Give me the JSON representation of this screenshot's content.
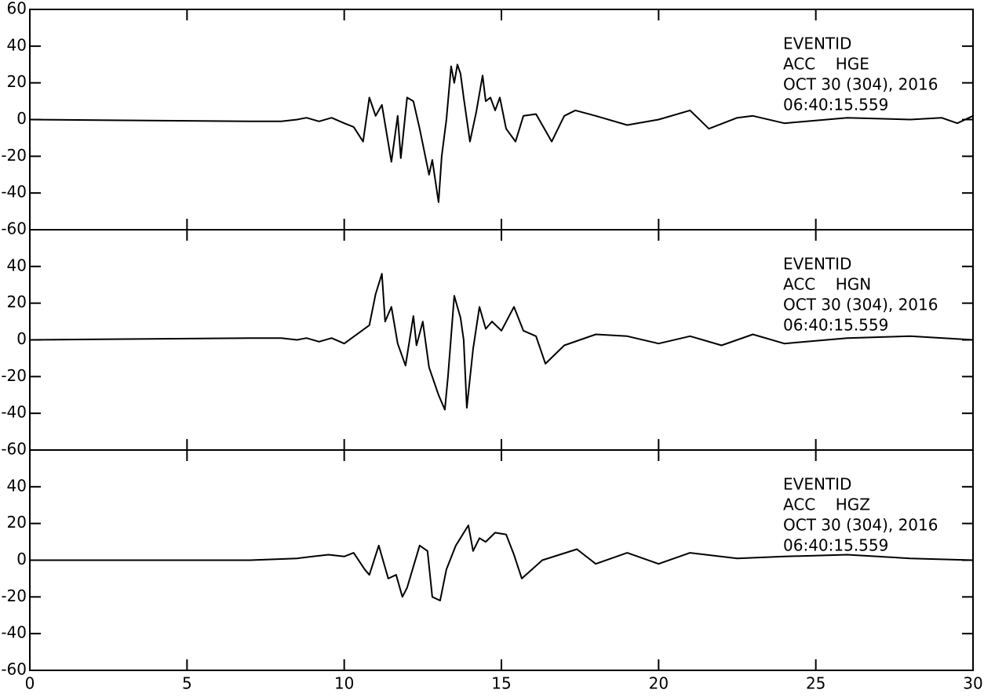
{
  "chart_data": [
    {
      "type": "line",
      "color": "#000000",
      "ylim": [
        -60,
        60
      ],
      "yticks": [
        -60,
        -40,
        -20,
        0,
        20,
        40,
        60
      ],
      "xlim": [
        0,
        30
      ],
      "annotations": [
        "EVENTID",
        "ACC    HGE",
        "OCT 30 (304), 2016",
        "06:40:15.559"
      ],
      "x": [
        0,
        7,
        8,
        8.5,
        8.8,
        9.2,
        9.6,
        10,
        10.3,
        10.6,
        10.8,
        11,
        11.2,
        11.5,
        11.7,
        11.8,
        12.0,
        12.2,
        12.4,
        12.7,
        12.8,
        13.0,
        13.1,
        13.25,
        13.4,
        13.5,
        13.6,
        13.7,
        13.8,
        14.0,
        14.2,
        14.4,
        14.5,
        14.65,
        14.8,
        14.95,
        15.15,
        15.45,
        15.7,
        16.1,
        16.6,
        17.0,
        17.35,
        18.0,
        19.0,
        20.0,
        21.0,
        21.6,
        22.5,
        23.0,
        24.0,
        26.0,
        28.0,
        29.0,
        29.5,
        30
      ],
      "values": [
        0,
        -1,
        -1,
        0,
        1,
        -1,
        1,
        -2,
        -4,
        -12,
        12,
        2,
        8,
        -23,
        2,
        -21,
        12,
        10,
        -5,
        -30,
        -22,
        -45,
        -20,
        0,
        29,
        20,
        30,
        25,
        12,
        -12,
        4,
        24,
        10,
        12,
        5,
        12,
        -5,
        -12,
        2,
        3,
        -12,
        2,
        5,
        2,
        -3,
        0,
        5,
        -5,
        1,
        2,
        -2,
        1,
        0,
        1,
        -2,
        2
      ]
    },
    {
      "type": "line",
      "color": "#000000",
      "ylim": [
        -60,
        60
      ],
      "yticks": [
        -60,
        -40,
        -20,
        0,
        20,
        40
      ],
      "xlim": [
        0,
        30
      ],
      "annotations": [
        "EVENTID",
        "ACC    HGN",
        "OCT 30 (304), 2016",
        "06:40:15.559"
      ],
      "x": [
        0,
        7,
        8,
        8.5,
        8.8,
        9.2,
        9.6,
        10,
        10.8,
        11,
        11.2,
        11.3,
        11.5,
        11.7,
        11.95,
        12.2,
        12.3,
        12.5,
        12.7,
        13.0,
        13.2,
        13.3,
        13.5,
        13.7,
        13.8,
        13.9,
        14.1,
        14.3,
        14.5,
        14.7,
        15.0,
        15.4,
        15.7,
        16.1,
        16.4,
        17.0,
        18.0,
        19.0,
        20.0,
        21.0,
        22.0,
        23.0,
        24.0,
        26.0,
        28.0,
        30
      ],
      "values": [
        0,
        1,
        1,
        0,
        1,
        -1,
        1,
        -2,
        8,
        25,
        36,
        10,
        18,
        -2,
        -14,
        13,
        -3,
        10,
        -15,
        -30,
        -38,
        -20,
        24,
        12,
        0,
        -37,
        -5,
        18,
        6,
        10,
        5,
        18,
        5,
        2,
        -13,
        -3,
        3,
        2,
        -2,
        2,
        -3,
        3,
        -2,
        1,
        2,
        0
      ]
    },
    {
      "type": "line",
      "color": "#000000",
      "ylim": [
        -60,
        60
      ],
      "yticks": [
        -60,
        -40,
        -20,
        0,
        20,
        40
      ],
      "xlim": [
        0,
        30
      ],
      "xticks": [
        0,
        5,
        10,
        15,
        20,
        25,
        30
      ],
      "annotations": [
        "EVENTID",
        "ACC    HGZ",
        "OCT 30 (304), 2016",
        "06:40:15.559"
      ],
      "x": [
        0,
        7,
        8.5,
        9.0,
        9.5,
        10.0,
        10.3,
        10.65,
        10.8,
        11.1,
        11.4,
        11.65,
        11.85,
        12.0,
        12.4,
        12.65,
        12.8,
        13.05,
        13.25,
        13.55,
        13.95,
        14.1,
        14.3,
        14.5,
        14.8,
        15.15,
        15.4,
        15.65,
        16.3,
        17.4,
        18.0,
        19.0,
        20.0,
        21.0,
        22.5,
        24.0,
        26.0,
        28.0,
        30
      ],
      "values": [
        0,
        0,
        1,
        2,
        3,
        2,
        4,
        -5,
        -8,
        8,
        -10,
        -8,
        -20,
        -15,
        8,
        5,
        -20,
        -22,
        -5,
        8,
        19,
        5,
        12,
        10,
        15,
        14,
        3,
        -10,
        0,
        6,
        -2,
        4,
        -2,
        4,
        1,
        2,
        3,
        1,
        0
      ]
    }
  ]
}
